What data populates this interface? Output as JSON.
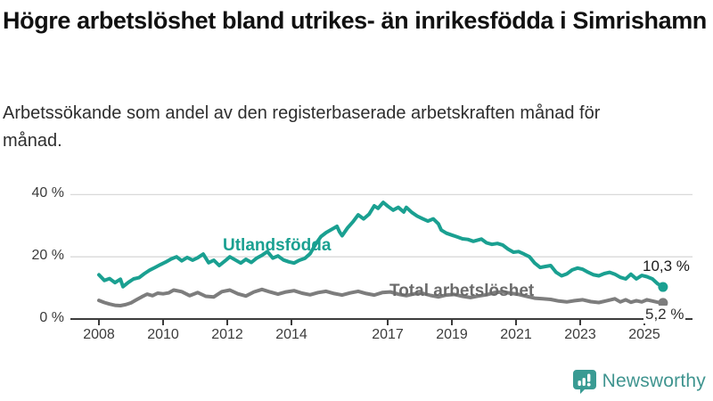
{
  "header": {
    "title": "Högre arbetslöshet bland utrikes- än inrikesfödda i Simrishamn",
    "subtitle": "Arbetssökande som andel av den registerbaserade arbetskraften månad för månad."
  },
  "chart_data": {
    "type": "line",
    "unit": "%",
    "grid": "horizontal",
    "ylim": [
      0,
      45
    ],
    "y_ticks": {
      "values": [
        0,
        20,
        40
      ],
      "labels": [
        "0 %",
        "20 %",
        "40 %"
      ]
    },
    "x_ticks": {
      "values": [
        2008,
        2010,
        2012,
        2014,
        2017,
        2019,
        2021,
        2023,
        2025
      ],
      "labels": [
        "2008",
        "2010",
        "2012",
        "2014",
        "2017",
        "2019",
        "2021",
        "2023",
        "2025"
      ]
    },
    "colors": {
      "gridline": "#d9d9d9",
      "axis": "#3c3c3c",
      "tick_text": "#3c3c3c"
    },
    "series": [
      {
        "name": "Utlandsfödda",
        "color": "#1aa091",
        "label_color": "#1aa091",
        "end_label": "10,3 %",
        "end_value": 10.3,
        "points": [
          [
            2008.0,
            14.2
          ],
          [
            2008.17,
            12.4
          ],
          [
            2008.33,
            13.0
          ],
          [
            2008.5,
            11.7
          ],
          [
            2008.67,
            12.8
          ],
          [
            2008.75,
            10.4
          ],
          [
            2008.92,
            11.8
          ],
          [
            2009.08,
            12.9
          ],
          [
            2009.25,
            13.3
          ],
          [
            2009.42,
            14.6
          ],
          [
            2009.58,
            15.7
          ],
          [
            2009.75,
            16.6
          ],
          [
            2009.92,
            17.5
          ],
          [
            2010.08,
            18.3
          ],
          [
            2010.25,
            19.3
          ],
          [
            2010.42,
            20.0
          ],
          [
            2010.58,
            18.7
          ],
          [
            2010.75,
            19.8
          ],
          [
            2010.92,
            18.9
          ],
          [
            2011.08,
            19.7
          ],
          [
            2011.25,
            20.9
          ],
          [
            2011.42,
            18.1
          ],
          [
            2011.58,
            18.9
          ],
          [
            2011.75,
            17.2
          ],
          [
            2011.92,
            18.6
          ],
          [
            2012.08,
            20.0
          ],
          [
            2012.25,
            19.0
          ],
          [
            2012.42,
            18.0
          ],
          [
            2012.58,
            19.2
          ],
          [
            2012.75,
            18.2
          ],
          [
            2012.92,
            19.6
          ],
          [
            2013.08,
            20.5
          ],
          [
            2013.25,
            21.7
          ],
          [
            2013.42,
            19.6
          ],
          [
            2013.58,
            20.3
          ],
          [
            2013.75,
            19.0
          ],
          [
            2013.92,
            18.4
          ],
          [
            2014.08,
            18.0
          ],
          [
            2014.25,
            18.9
          ],
          [
            2014.42,
            19.5
          ],
          [
            2014.58,
            21.0
          ],
          [
            2014.75,
            24.0
          ],
          [
            2014.92,
            26.5
          ],
          [
            2015.08,
            27.8
          ],
          [
            2015.25,
            28.8
          ],
          [
            2015.42,
            29.8
          ],
          [
            2015.5,
            28.0
          ],
          [
            2015.58,
            26.8
          ],
          [
            2015.75,
            29.3
          ],
          [
            2015.92,
            31.3
          ],
          [
            2016.08,
            33.5
          ],
          [
            2016.25,
            32.2
          ],
          [
            2016.42,
            33.7
          ],
          [
            2016.58,
            36.4
          ],
          [
            2016.7,
            35.6
          ],
          [
            2016.86,
            37.5
          ],
          [
            2017.0,
            36.3
          ],
          [
            2017.17,
            35.0
          ],
          [
            2017.33,
            35.9
          ],
          [
            2017.5,
            34.4
          ],
          [
            2017.58,
            35.9
          ],
          [
            2017.75,
            34.3
          ],
          [
            2017.92,
            33.1
          ],
          [
            2018.08,
            32.3
          ],
          [
            2018.25,
            31.5
          ],
          [
            2018.42,
            32.2
          ],
          [
            2018.58,
            30.6
          ],
          [
            2018.67,
            28.6
          ],
          [
            2018.83,
            27.6
          ],
          [
            2019.0,
            27.0
          ],
          [
            2019.17,
            26.4
          ],
          [
            2019.33,
            25.8
          ],
          [
            2019.5,
            25.6
          ],
          [
            2019.67,
            25.0
          ],
          [
            2019.92,
            25.7
          ],
          [
            2020.08,
            24.5
          ],
          [
            2020.25,
            24.0
          ],
          [
            2020.42,
            24.3
          ],
          [
            2020.58,
            23.8
          ],
          [
            2020.75,
            22.5
          ],
          [
            2020.92,
            21.5
          ],
          [
            2021.08,
            21.7
          ],
          [
            2021.25,
            20.9
          ],
          [
            2021.42,
            20.0
          ],
          [
            2021.58,
            18.0
          ],
          [
            2021.75,
            16.6
          ],
          [
            2021.92,
            16.9
          ],
          [
            2022.08,
            17.2
          ],
          [
            2022.25,
            15.0
          ],
          [
            2022.42,
            13.9
          ],
          [
            2022.58,
            14.5
          ],
          [
            2022.75,
            15.8
          ],
          [
            2022.92,
            16.4
          ],
          [
            2023.08,
            16.0
          ],
          [
            2023.25,
            15.0
          ],
          [
            2023.42,
            14.2
          ],
          [
            2023.58,
            13.9
          ],
          [
            2023.75,
            14.6
          ],
          [
            2023.92,
            15.0
          ],
          [
            2024.08,
            14.4
          ],
          [
            2024.25,
            13.4
          ],
          [
            2024.42,
            12.9
          ],
          [
            2024.58,
            14.4
          ],
          [
            2024.75,
            12.9
          ],
          [
            2024.92,
            14.0
          ],
          [
            2025.08,
            13.6
          ],
          [
            2025.25,
            12.9
          ],
          [
            2025.42,
            11.3
          ],
          [
            2025.58,
            10.3
          ]
        ]
      },
      {
        "name": "Total arbetslöshet",
        "color": "#7d7d7d",
        "label_color": "#6b6b6b",
        "end_label": "5,2 %",
        "end_value": 5.2,
        "points": [
          [
            2008.0,
            6.0
          ],
          [
            2008.17,
            5.3
          ],
          [
            2008.33,
            4.8
          ],
          [
            2008.5,
            4.4
          ],
          [
            2008.67,
            4.3
          ],
          [
            2008.83,
            4.6
          ],
          [
            2009.0,
            5.2
          ],
          [
            2009.17,
            6.2
          ],
          [
            2009.33,
            7.1
          ],
          [
            2009.5,
            8.0
          ],
          [
            2009.67,
            7.5
          ],
          [
            2009.83,
            8.3
          ],
          [
            2010.0,
            8.1
          ],
          [
            2010.17,
            8.4
          ],
          [
            2010.33,
            9.3
          ],
          [
            2010.58,
            8.8
          ],
          [
            2010.83,
            7.5
          ],
          [
            2011.08,
            8.5
          ],
          [
            2011.33,
            7.3
          ],
          [
            2011.58,
            7.1
          ],
          [
            2011.83,
            8.8
          ],
          [
            2012.08,
            9.3
          ],
          [
            2012.33,
            8.1
          ],
          [
            2012.58,
            7.4
          ],
          [
            2012.83,
            8.7
          ],
          [
            2013.08,
            9.5
          ],
          [
            2013.33,
            8.7
          ],
          [
            2013.58,
            8.0
          ],
          [
            2013.83,
            8.7
          ],
          [
            2014.08,
            9.1
          ],
          [
            2014.33,
            8.3
          ],
          [
            2014.58,
            7.8
          ],
          [
            2014.83,
            8.5
          ],
          [
            2015.08,
            8.9
          ],
          [
            2015.33,
            8.2
          ],
          [
            2015.58,
            7.7
          ],
          [
            2015.83,
            8.4
          ],
          [
            2016.08,
            8.9
          ],
          [
            2016.33,
            8.2
          ],
          [
            2016.58,
            7.7
          ],
          [
            2016.83,
            8.5
          ],
          [
            2017.08,
            8.7
          ],
          [
            2017.33,
            8.0
          ],
          [
            2017.58,
            7.5
          ],
          [
            2017.83,
            8.1
          ],
          [
            2018.08,
            8.3
          ],
          [
            2018.33,
            7.6
          ],
          [
            2018.58,
            7.1
          ],
          [
            2018.83,
            7.7
          ],
          [
            2019.08,
            7.9
          ],
          [
            2019.33,
            7.3
          ],
          [
            2019.58,
            6.9
          ],
          [
            2019.83,
            7.4
          ],
          [
            2020.08,
            7.8
          ],
          [
            2020.33,
            8.5
          ],
          [
            2020.58,
            8.7
          ],
          [
            2020.83,
            8.3
          ],
          [
            2021.08,
            7.9
          ],
          [
            2021.33,
            7.3
          ],
          [
            2021.58,
            6.7
          ],
          [
            2021.83,
            6.5
          ],
          [
            2022.08,
            6.3
          ],
          [
            2022.33,
            5.8
          ],
          [
            2022.58,
            5.5
          ],
          [
            2022.83,
            5.9
          ],
          [
            2023.08,
            6.2
          ],
          [
            2023.33,
            5.6
          ],
          [
            2023.58,
            5.3
          ],
          [
            2023.83,
            5.9
          ],
          [
            2024.08,
            6.5
          ],
          [
            2024.25,
            5.5
          ],
          [
            2024.42,
            6.2
          ],
          [
            2024.58,
            5.4
          ],
          [
            2024.75,
            5.9
          ],
          [
            2024.92,
            5.5
          ],
          [
            2025.08,
            6.2
          ],
          [
            2025.25,
            5.8
          ],
          [
            2025.42,
            5.4
          ],
          [
            2025.58,
            5.2
          ]
        ]
      }
    ]
  },
  "footer": {
    "brand": "Newsworthy",
    "brand_color": "#3f948f",
    "icon_color": "#399b93"
  }
}
